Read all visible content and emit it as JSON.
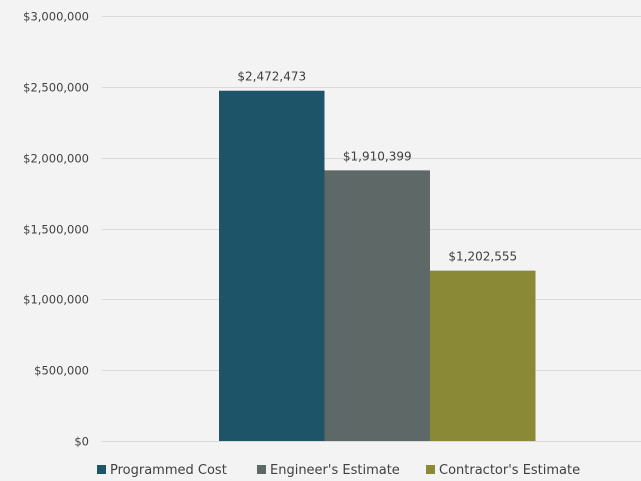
{
  "chart_data": {
    "type": "bar",
    "title": "",
    "xlabel": "",
    "ylabel": "",
    "categories": [
      ""
    ],
    "series": [
      {
        "name": "Programmed Cost",
        "values": [
          2472473
        ],
        "label": "$2,472,473",
        "color": "#1e5468"
      },
      {
        "name": "Engineer's Estimate",
        "values": [
          1910399
        ],
        "label": "$1,910,399",
        "color": "#5e6866"
      },
      {
        "name": "Contractor's Estimate",
        "values": [
          1202555
        ],
        "label": "$1,202,555",
        "color": "#8a8a36"
      }
    ],
    "ylim": [
      0,
      3000000
    ],
    "yticks": [
      {
        "value": 0,
        "label": "$0"
      },
      {
        "value": 500000,
        "label": "$500,000"
      },
      {
        "value": 1000000,
        "label": "$1,000,000"
      },
      {
        "value": 1500000,
        "label": "$1,500,000"
      },
      {
        "value": 2000000,
        "label": "$2,000,000"
      },
      {
        "value": 2500000,
        "label": "$2,500,000"
      },
      {
        "value": 3000000,
        "label": "$3,000,000"
      }
    ],
    "grid": true,
    "legend_position": "bottom"
  }
}
